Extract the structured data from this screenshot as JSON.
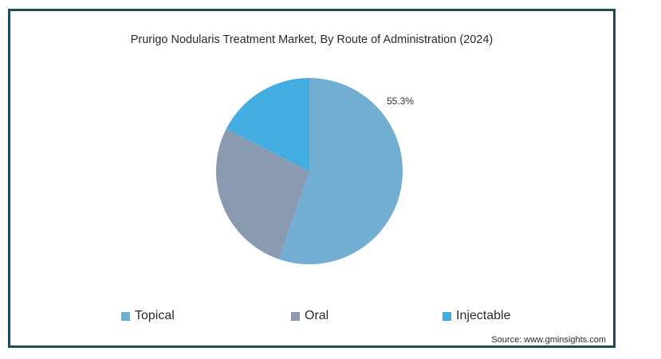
{
  "chart_data": {
    "type": "pie",
    "title": "Prurigo Nodularis Treatment Market, By Route of Administration (2024)",
    "categories": [
      "Topical",
      "Oral",
      "Injectable"
    ],
    "values": [
      55.3,
      27.2,
      17.5
    ],
    "data_labels": [
      "55.3%",
      "",
      ""
    ],
    "colors": [
      "#71aed1",
      "#8a9ab1",
      "#43ade2"
    ],
    "legend_position": "bottom"
  },
  "source": "Source: www.gminsights.com"
}
